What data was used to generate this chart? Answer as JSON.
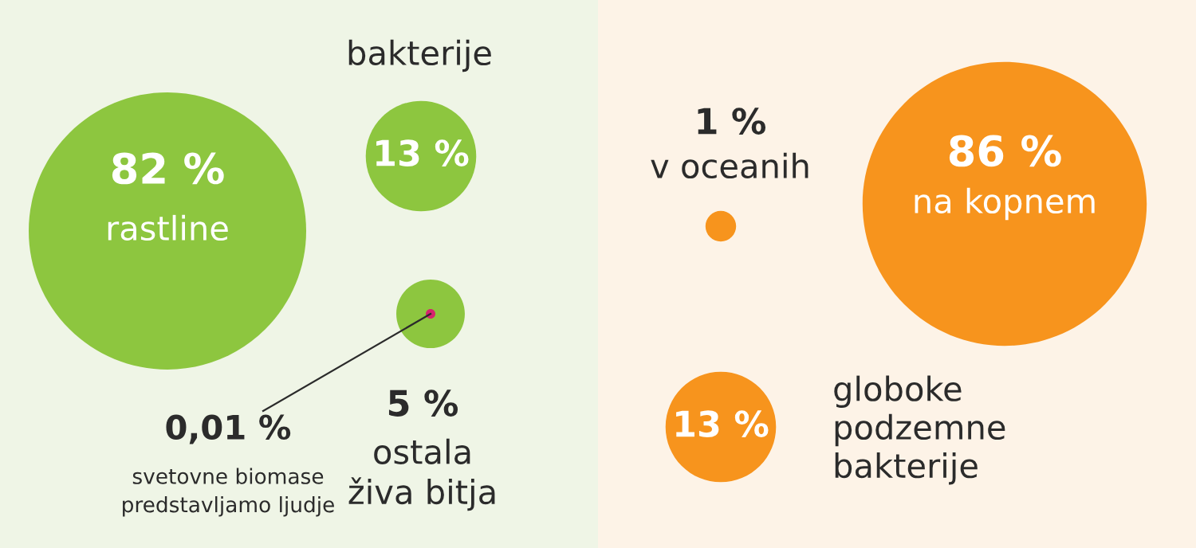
{
  "chart_data": [
    {
      "type": "other",
      "categories": [
        "rastline",
        "bakterije",
        "ostala\nživa bitja"
      ],
      "values": [
        82,
        13,
        5
      ],
      "value_labels": [
        "82 %",
        "13 %",
        "5 %"
      ],
      "colors": [
        "#8dc63f",
        "#8dc63f",
        "#8dc63f"
      ],
      "annotations": [
        "0,01 %",
        "svetovne biomase\npredstavljamo ljudje"
      ]
    },
    {
      "type": "other",
      "categories": [
        "v oceanih",
        "na kopnem",
        "globoke\npodzemne\nbakterije"
      ],
      "values": [
        1,
        86,
        13
      ],
      "value_labels": [
        "1 %",
        "86 %",
        "13 %"
      ],
      "colors": [
        "#f7941d",
        "#f7941d",
        "#f7941d"
      ]
    }
  ]
}
